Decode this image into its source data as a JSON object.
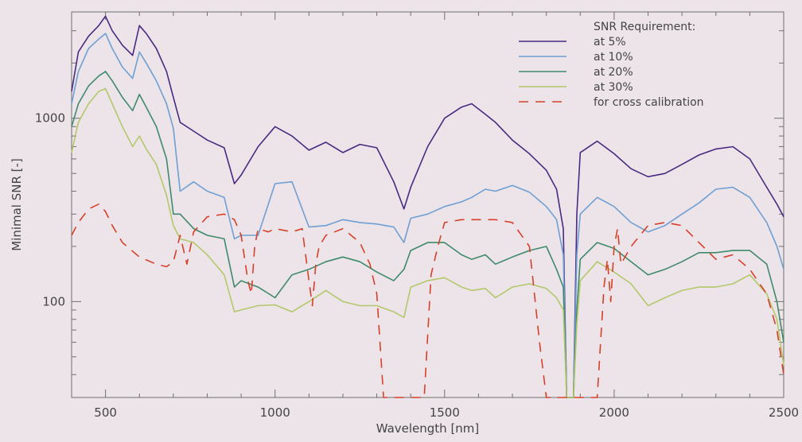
{
  "chart_data": {
    "type": "line",
    "title": "",
    "xlabel": "Wavelength [nm]",
    "ylabel": "Minimal SNR [-]",
    "xlim": [
      400,
      2500
    ],
    "ylim": [
      30,
      3800
    ],
    "y_scale": "log",
    "x_ticks": [
      500,
      1000,
      1500,
      2000,
      2500
    ],
    "x_tick_labels": [
      "500",
      "1000",
      "1500",
      "2000",
      "2500"
    ],
    "y_ticks": [
      100,
      1000
    ],
    "y_tick_labels": [
      "100",
      "1000"
    ],
    "grid": false,
    "legend": {
      "title": "SNR Requirement:",
      "placement": "top-right"
    },
    "series": [
      {
        "name": "at 5%",
        "color": "#4a2a80",
        "dash": "solid",
        "x": [
          400,
          420,
          450,
          480,
          500,
          520,
          550,
          580,
          600,
          620,
          650,
          680,
          700,
          720,
          760,
          800,
          850,
          880,
          900,
          950,
          1000,
          1050,
          1100,
          1150,
          1200,
          1250,
          1300,
          1350,
          1380,
          1400,
          1450,
          1500,
          1550,
          1580,
          1620,
          1650,
          1700,
          1750,
          1800,
          1830,
          1850,
          1860,
          1870,
          1880,
          1890,
          1900,
          1950,
          2000,
          2050,
          2100,
          2150,
          2200,
          2250,
          2300,
          2350,
          2400,
          2450,
          2480,
          2500
        ],
        "y": [
          1400,
          2300,
          2800,
          3200,
          3600,
          3000,
          2500,
          2200,
          3200,
          2900,
          2400,
          1800,
          1300,
          950,
          850,
          760,
          690,
          440,
          490,
          700,
          900,
          800,
          670,
          740,
          650,
          720,
          690,
          450,
          320,
          420,
          700,
          1000,
          1150,
          1200,
          1050,
          950,
          760,
          640,
          520,
          410,
          250,
          30,
          30,
          30,
          300,
          650,
          750,
          640,
          530,
          480,
          500,
          560,
          630,
          680,
          700,
          600,
          420,
          340,
          290
        ]
      },
      {
        "name": "at 10%",
        "color": "#6f9fd3",
        "dash": "solid",
        "x": [
          400,
          420,
          450,
          480,
          500,
          520,
          550,
          580,
          600,
          620,
          650,
          680,
          700,
          720,
          760,
          800,
          850,
          880,
          900,
          950,
          1000,
          1050,
          1100,
          1150,
          1200,
          1250,
          1300,
          1350,
          1380,
          1400,
          1450,
          1500,
          1550,
          1580,
          1620,
          1650,
          1700,
          1750,
          1800,
          1830,
          1850,
          1860,
          1870,
          1880,
          1890,
          1900,
          1950,
          2000,
          2050,
          2100,
          2150,
          2200,
          2250,
          2300,
          2350,
          2400,
          2450,
          2480,
          2500
        ],
        "y": [
          1200,
          1800,
          2400,
          2700,
          2900,
          2400,
          1900,
          1650,
          2300,
          2000,
          1600,
          1200,
          880,
          400,
          450,
          400,
          370,
          220,
          230,
          230,
          440,
          450,
          255,
          260,
          280,
          270,
          265,
          255,
          210,
          285,
          300,
          330,
          350,
          370,
          410,
          400,
          430,
          395,
          330,
          280,
          180,
          30,
          30,
          30,
          180,
          300,
          370,
          330,
          270,
          240,
          260,
          300,
          345,
          410,
          420,
          370,
          270,
          200,
          150
        ]
      },
      {
        "name": "at 20%",
        "color": "#3f8a6a",
        "dash": "solid",
        "x": [
          400,
          420,
          450,
          480,
          500,
          520,
          550,
          580,
          600,
          620,
          650,
          680,
          700,
          720,
          760,
          800,
          850,
          880,
          900,
          950,
          1000,
          1050,
          1100,
          1150,
          1200,
          1250,
          1300,
          1350,
          1380,
          1400,
          1450,
          1500,
          1550,
          1580,
          1620,
          1650,
          1700,
          1750,
          1800,
          1830,
          1850,
          1860,
          1870,
          1880,
          1890,
          1900,
          1950,
          2000,
          2050,
          2100,
          2150,
          2200,
          2250,
          2300,
          2350,
          2400,
          2450,
          2480,
          2500
        ],
        "y": [
          900,
          1200,
          1500,
          1700,
          1800,
          1600,
          1300,
          1100,
          1350,
          1150,
          900,
          600,
          300,
          300,
          250,
          230,
          220,
          120,
          130,
          120,
          105,
          140,
          150,
          165,
          175,
          165,
          145,
          130,
          150,
          190,
          210,
          210,
          180,
          170,
          180,
          160,
          175,
          190,
          200,
          150,
          120,
          30,
          30,
          30,
          90,
          170,
          210,
          195,
          165,
          140,
          150,
          165,
          185,
          185,
          190,
          190,
          160,
          100,
          60
        ]
      },
      {
        "name": "at 30%",
        "color": "#b3c86a",
        "dash": "solid",
        "x": [
          400,
          420,
          450,
          480,
          500,
          520,
          550,
          580,
          600,
          620,
          650,
          680,
          700,
          720,
          760,
          800,
          850,
          880,
          900,
          950,
          1000,
          1050,
          1100,
          1150,
          1200,
          1250,
          1300,
          1350,
          1380,
          1400,
          1450,
          1500,
          1550,
          1580,
          1620,
          1650,
          1700,
          1750,
          1800,
          1830,
          1850,
          1860,
          1870,
          1880,
          1890,
          1900,
          1950,
          2000,
          2050,
          2100,
          2150,
          2200,
          2250,
          2300,
          2350,
          2400,
          2450,
          2480,
          2500
        ],
        "y": [
          650,
          950,
          1200,
          1400,
          1450,
          1200,
          900,
          700,
          800,
          680,
          560,
          380,
          260,
          220,
          210,
          180,
          140,
          88,
          90,
          95,
          96,
          88,
          100,
          115,
          100,
          95,
          95,
          88,
          82,
          120,
          130,
          135,
          120,
          115,
          118,
          105,
          120,
          125,
          118,
          105,
          90,
          30,
          30,
          30,
          75,
          130,
          165,
          145,
          125,
          95,
          105,
          115,
          120,
          120,
          125,
          140,
          110,
          80,
          45
        ]
      },
      {
        "name": "for cross calibration",
        "color": "#d6402a",
        "dash": "dashed",
        "x": [
          400,
          420,
          450,
          480,
          500,
          520,
          550,
          600,
          650,
          680,
          700,
          720,
          740,
          760,
          800,
          850,
          880,
          900,
          920,
          930,
          940,
          950,
          980,
          1000,
          1050,
          1080,
          1100,
          1110,
          1120,
          1130,
          1150,
          1200,
          1250,
          1280,
          1300,
          1320,
          1340,
          1350,
          1360,
          1380,
          1400,
          1420,
          1430,
          1440,
          1460,
          1480,
          1500,
          1550,
          1600,
          1650,
          1700,
          1750,
          1780,
          1800,
          1810,
          1820,
          1830,
          1840,
          1860,
          1880,
          1900,
          1920,
          1930,
          1950,
          1970,
          1980,
          1990,
          2000,
          2010,
          2020,
          2050,
          2100,
          2150,
          2200,
          2250,
          2300,
          2350,
          2400,
          2450,
          2480,
          2500
        ],
        "y": [
          230,
          270,
          320,
          340,
          310,
          260,
          210,
          175,
          160,
          155,
          165,
          230,
          160,
          240,
          290,
          300,
          280,
          230,
          130,
          110,
          200,
          250,
          240,
          250,
          240,
          250,
          130,
          95,
          160,
          200,
          230,
          250,
          210,
          160,
          110,
          30,
          30,
          30,
          30,
          30,
          30,
          30,
          30,
          30,
          140,
          200,
          270,
          280,
          280,
          280,
          270,
          200,
          60,
          30,
          30,
          30,
          30,
          30,
          30,
          30,
          30,
          30,
          30,
          30,
          120,
          170,
          100,
          200,
          250,
          160,
          200,
          260,
          270,
          260,
          210,
          170,
          180,
          150,
          110,
          70,
          40
        ]
      }
    ]
  }
}
